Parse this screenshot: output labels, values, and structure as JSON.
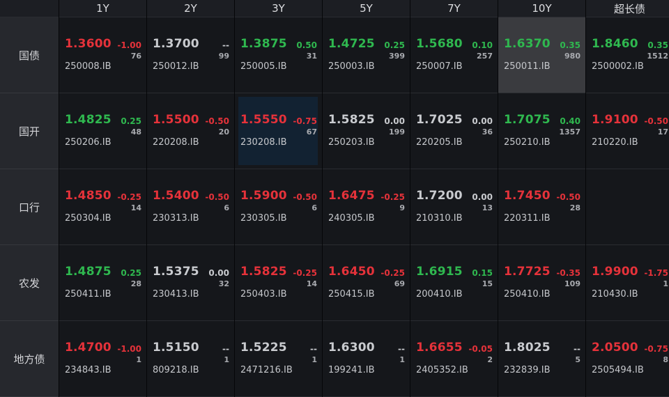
{
  "colors": {
    "up": "#e5323a",
    "down": "#2fb84f",
    "flat": "#c9cbcf"
  },
  "columns": [
    "1Y",
    "2Y",
    "3Y",
    "5Y",
    "7Y",
    "10Y",
    "超长债"
  ],
  "rows": [
    {
      "label": "国债",
      "cells": [
        {
          "price": "1.3600",
          "change": "-1.00",
          "volume": "76",
          "code": "250008.IB",
          "dir": "up"
        },
        {
          "price": "1.3700",
          "change": "--",
          "volume": "99",
          "code": "250012.IB",
          "dir": "flat"
        },
        {
          "price": "1.3875",
          "change": "0.50",
          "volume": "31",
          "code": "250005.IB",
          "dir": "down"
        },
        {
          "price": "1.4725",
          "change": "0.25",
          "volume": "399",
          "code": "250003.IB",
          "dir": "down"
        },
        {
          "price": "1.5680",
          "change": "0.10",
          "volume": "257",
          "code": "250007.IB",
          "dir": "down"
        },
        {
          "price": "1.6370",
          "change": "0.35",
          "volume": "980",
          "code": "250011.IB",
          "dir": "down",
          "highlight": "gray"
        },
        {
          "price": "1.8460",
          "change": "0.35",
          "volume": "1512",
          "code": "2500002.IB",
          "dir": "down"
        }
      ]
    },
    {
      "label": "国开",
      "cells": [
        {
          "price": "1.4825",
          "change": "0.25",
          "volume": "48",
          "code": "250206.IB",
          "dir": "down"
        },
        {
          "price": "1.5500",
          "change": "-0.50",
          "volume": "20",
          "code": "220208.IB",
          "dir": "up"
        },
        {
          "price": "1.5550",
          "change": "-0.75",
          "volume": "67",
          "code": "230208.IB",
          "dir": "up",
          "highlight": "blue"
        },
        {
          "price": "1.5825",
          "change": "0.00",
          "volume": "199",
          "code": "250203.IB",
          "dir": "flat"
        },
        {
          "price": "1.7025",
          "change": "0.00",
          "volume": "36",
          "code": "220205.IB",
          "dir": "flat"
        },
        {
          "price": "1.7075",
          "change": "0.40",
          "volume": "1357",
          "code": "250210.IB",
          "dir": "down"
        },
        {
          "price": "1.9100",
          "change": "-0.50",
          "volume": "17",
          "code": "210220.IB",
          "dir": "up"
        }
      ]
    },
    {
      "label": "口行",
      "cells": [
        {
          "price": "1.4850",
          "change": "-0.25",
          "volume": "14",
          "code": "250304.IB",
          "dir": "up"
        },
        {
          "price": "1.5400",
          "change": "-0.50",
          "volume": "6",
          "code": "230313.IB",
          "dir": "up"
        },
        {
          "price": "1.5900",
          "change": "-0.50",
          "volume": "6",
          "code": "230305.IB",
          "dir": "up"
        },
        {
          "price": "1.6475",
          "change": "-0.25",
          "volume": "9",
          "code": "240305.IB",
          "dir": "up"
        },
        {
          "price": "1.7200",
          "change": "0.00",
          "volume": "13",
          "code": "210310.IB",
          "dir": "flat"
        },
        {
          "price": "1.7450",
          "change": "-0.50",
          "volume": "28",
          "code": "220311.IB",
          "dir": "up"
        },
        null
      ]
    },
    {
      "label": "农发",
      "cells": [
        {
          "price": "1.4875",
          "change": "0.25",
          "volume": "28",
          "code": "250411.IB",
          "dir": "down"
        },
        {
          "price": "1.5375",
          "change": "0.00",
          "volume": "32",
          "code": "230413.IB",
          "dir": "flat"
        },
        {
          "price": "1.5825",
          "change": "-0.25",
          "volume": "14",
          "code": "250403.IB",
          "dir": "up"
        },
        {
          "price": "1.6450",
          "change": "-0.25",
          "volume": "69",
          "code": "250415.IB",
          "dir": "up"
        },
        {
          "price": "1.6915",
          "change": "0.15",
          "volume": "15",
          "code": "200410.IB",
          "dir": "down"
        },
        {
          "price": "1.7725",
          "change": "-0.35",
          "volume": "109",
          "code": "250410.IB",
          "dir": "up"
        },
        {
          "price": "1.9900",
          "change": "-1.75",
          "volume": "1",
          "code": "210430.IB",
          "dir": "up"
        }
      ]
    },
    {
      "label": "地方债",
      "cells": [
        {
          "price": "1.4700",
          "change": "-1.00",
          "volume": "1",
          "code": "234843.IB",
          "dir": "up"
        },
        {
          "price": "1.5150",
          "change": "--",
          "volume": "1",
          "code": "809218.IB",
          "dir": "flat"
        },
        {
          "price": "1.5225",
          "change": "--",
          "volume": "1",
          "code": "2471216.IB",
          "dir": "flat"
        },
        {
          "price": "1.6300",
          "change": "--",
          "volume": "1",
          "code": "199241.IB",
          "dir": "flat"
        },
        {
          "price": "1.6655",
          "change": "-0.05",
          "volume": "2",
          "code": "2405352.IB",
          "dir": "up"
        },
        {
          "price": "1.8025",
          "change": "--",
          "volume": "5",
          "code": "232839.IB",
          "dir": "flat"
        },
        {
          "price": "2.0500",
          "change": "-0.75",
          "volume": "8",
          "code": "2505494.IB",
          "dir": "up"
        }
      ]
    }
  ]
}
